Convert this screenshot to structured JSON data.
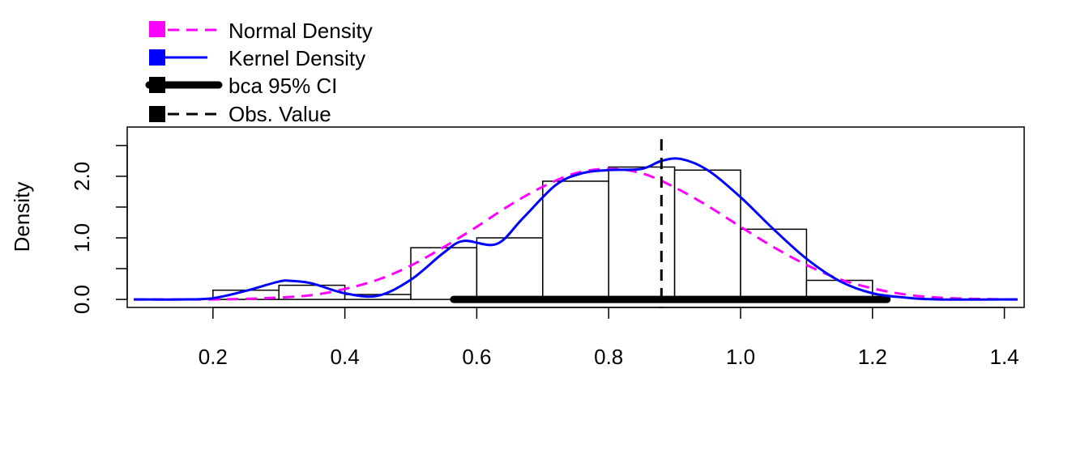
{
  "chart_data": {
    "type": "histogram",
    "title": "",
    "xlabel": "",
    "ylabel": "Density",
    "xlim": [
      0.07,
      1.43
    ],
    "ylim": [
      -0.13,
      2.8
    ],
    "x_ticks": [
      "0.2",
      "0.4",
      "0.6",
      "0.8",
      "1.0",
      "1.2",
      "1.4"
    ],
    "y_ticks": [
      "0.0",
      "1.0",
      "2.0"
    ],
    "y_minor_ticks": [
      0.5,
      1.5,
      2.5
    ],
    "grid": false,
    "legend_position": "top-left",
    "legend": [
      {
        "label": "Normal Density",
        "color": "#FF00FF",
        "line": "dashed"
      },
      {
        "label": "Kernel Density",
        "color": "#0000FF",
        "line": "solid"
      },
      {
        "label": "bca 95% CI",
        "color": "#000000",
        "line": "thick"
      },
      {
        "label": "Obs. Value",
        "color": "#000000",
        "line": "dashed"
      }
    ],
    "histogram": {
      "bin_edges": [
        0.2,
        0.3,
        0.4,
        0.5,
        0.6,
        0.7,
        0.8,
        0.9,
        1.0,
        1.1,
        1.2
      ],
      "densities": [
        0.15,
        0.23,
        0.08,
        0.84,
        1.0,
        1.92,
        2.15,
        2.1,
        1.14,
        0.31
      ]
    },
    "series": [
      {
        "name": "Normal Density",
        "color": "#FF00FF",
        "x": [
          0.08,
          0.15,
          0.2,
          0.25,
          0.3,
          0.35,
          0.4,
          0.45,
          0.5,
          0.55,
          0.6,
          0.65,
          0.7,
          0.75,
          0.8,
          0.85,
          0.9,
          0.95,
          1.0,
          1.05,
          1.1,
          1.15,
          1.2,
          1.25,
          1.3,
          1.35,
          1.42
        ],
        "y": [
          0.0,
          0.0,
          0.0,
          0.01,
          0.03,
          0.07,
          0.17,
          0.32,
          0.55,
          0.85,
          1.18,
          1.53,
          1.83,
          2.05,
          2.12,
          2.05,
          1.82,
          1.52,
          1.18,
          0.85,
          0.56,
          0.33,
          0.18,
          0.08,
          0.03,
          0.01,
          0.0
        ]
      },
      {
        "name": "Kernel Density",
        "color": "#0000FF",
        "x": [
          0.08,
          0.15,
          0.2,
          0.25,
          0.3,
          0.32,
          0.35,
          0.4,
          0.45,
          0.5,
          0.55,
          0.58,
          0.63,
          0.67,
          0.72,
          0.76,
          0.8,
          0.85,
          0.88,
          0.91,
          0.95,
          1.0,
          1.05,
          1.1,
          1.15,
          1.2,
          1.25,
          1.3,
          1.42
        ],
        "y": [
          0.0,
          0.0,
          0.02,
          0.14,
          0.29,
          0.3,
          0.26,
          0.1,
          0.06,
          0.32,
          0.76,
          0.95,
          0.9,
          1.32,
          1.86,
          2.05,
          2.1,
          2.12,
          2.25,
          2.28,
          2.1,
          1.66,
          1.14,
          0.66,
          0.3,
          0.1,
          0.03,
          0.0,
          0.0
        ]
      }
    ],
    "ci": {
      "name": "bca 95% CI",
      "low": 0.565,
      "high": 1.222
    },
    "observed_value": 0.88
  }
}
